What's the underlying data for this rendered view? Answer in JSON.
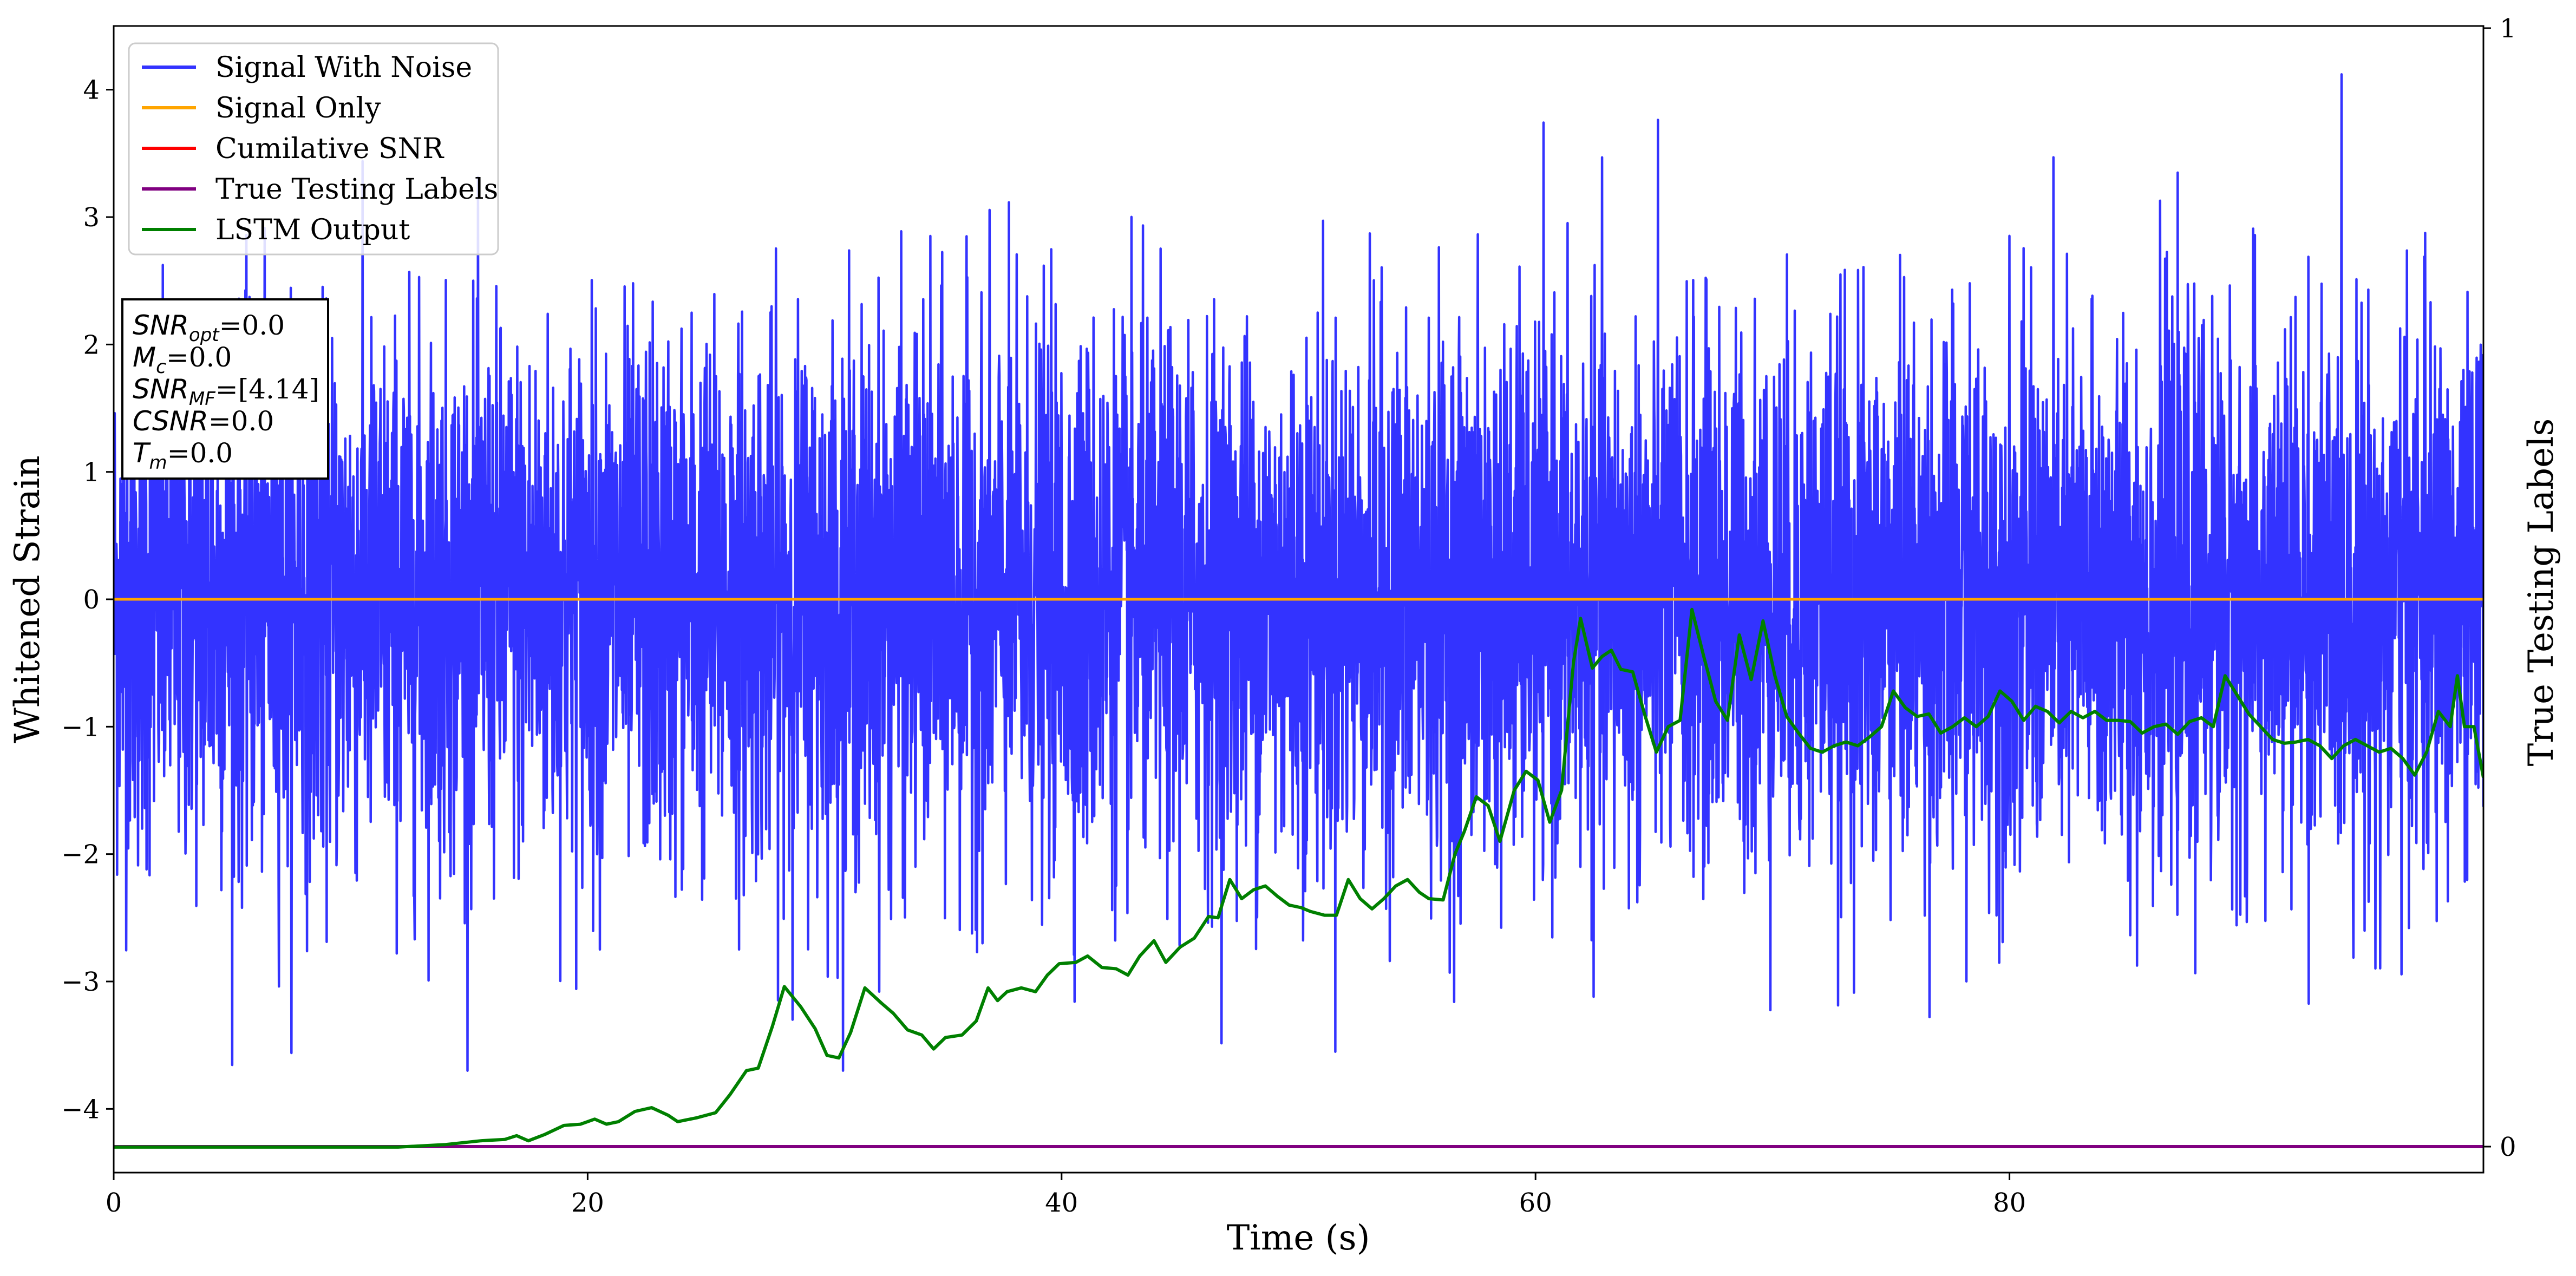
{
  "chart_data": {
    "type": "line",
    "xlabel": "Time (s)",
    "ylabel": "Whitened Strain",
    "ylabel_right": "True Testing Labels",
    "xlim": [
      0,
      100
    ],
    "ylim": [
      -4.5,
      4.5
    ],
    "ylim_right": [
      0,
      1
    ],
    "x_ticks": [
      "0",
      "20",
      "40",
      "60",
      "80"
    ],
    "y_ticks": [
      "−4",
      "−3",
      "−2",
      "−1",
      "0",
      "1",
      "2",
      "3",
      "4"
    ],
    "y_ticks_right": [
      "0",
      "1"
    ],
    "grid": false,
    "legend_position": "upper-left",
    "legend": [
      {
        "label": "Signal With Noise",
        "color": "#3333ff"
      },
      {
        "label": "Signal Only",
        "color": "#ffa500"
      },
      {
        "label": "Cumilative SNR",
        "color": "#ff0000"
      },
      {
        "label": "True Testing Labels",
        "color": "#800080"
      },
      {
        "label": "LSTM Output",
        "color": "#008000"
      }
    ],
    "annotation": {
      "snr_opt": {
        "sym": "SNR",
        "sub": "opt",
        "val": "=0.0"
      },
      "mc": {
        "sym": "M",
        "sub": "c",
        "val": "=0.0"
      },
      "snr_mf": {
        "sym": "SNR",
        "sub": "MF",
        "val": "=[4.14]"
      },
      "csnr": {
        "sym": "CSNR",
        "sub": "",
        "val": "=0.0"
      },
      "tm": {
        "sym": "T",
        "sub": "m",
        "val": "=0.0"
      }
    },
    "series": [
      {
        "name": "Signal With Noise",
        "color": "#3333ff",
        "description": "white noise, std ~1",
        "noise_std": 1.0
      },
      {
        "name": "Signal Only",
        "color": "#ffa500",
        "points": [
          [
            0,
            0
          ],
          [
            100,
            0
          ]
        ]
      },
      {
        "name": "True Testing Labels",
        "color": "#800080",
        "axis": "right",
        "points": [
          [
            0,
            0
          ],
          [
            100,
            0
          ]
        ]
      },
      {
        "name": "LSTM Output",
        "color": "#008000",
        "axis": "left",
        "points": [
          [
            0,
            -4.3
          ],
          [
            12,
            -4.3
          ],
          [
            14,
            -4.28
          ],
          [
            15.5,
            -4.25
          ],
          [
            16.5,
            -4.24
          ],
          [
            17,
            -4.21
          ],
          [
            17.5,
            -4.25
          ],
          [
            18.2,
            -4.2
          ],
          [
            19,
            -4.13
          ],
          [
            19.7,
            -4.12
          ],
          [
            20.3,
            -4.08
          ],
          [
            20.8,
            -4.12
          ],
          [
            21.3,
            -4.1
          ],
          [
            22,
            -4.02
          ],
          [
            22.7,
            -3.99
          ],
          [
            23.4,
            -4.05
          ],
          [
            23.8,
            -4.1
          ],
          [
            24.6,
            -4.07
          ],
          [
            25.4,
            -4.03
          ],
          [
            26,
            -3.89
          ],
          [
            26.7,
            -3.7
          ],
          [
            27.2,
            -3.68
          ],
          [
            27.8,
            -3.35
          ],
          [
            28.3,
            -3.04
          ],
          [
            29,
            -3.2
          ],
          [
            29.6,
            -3.37
          ],
          [
            30.1,
            -3.58
          ],
          [
            30.6,
            -3.6
          ],
          [
            31.1,
            -3.4
          ],
          [
            31.7,
            -3.05
          ],
          [
            32.4,
            -3.17
          ],
          [
            32.9,
            -3.25
          ],
          [
            33.5,
            -3.38
          ],
          [
            34.1,
            -3.42
          ],
          [
            34.6,
            -3.53
          ],
          [
            35.1,
            -3.44
          ],
          [
            35.8,
            -3.42
          ],
          [
            36.4,
            -3.31
          ],
          [
            36.9,
            -3.05
          ],
          [
            37.3,
            -3.15
          ],
          [
            37.7,
            -3.08
          ],
          [
            38.3,
            -3.05
          ],
          [
            38.9,
            -3.08
          ],
          [
            39.4,
            -2.95
          ],
          [
            39.9,
            -2.86
          ],
          [
            40.6,
            -2.85
          ],
          [
            41.1,
            -2.8
          ],
          [
            41.7,
            -2.89
          ],
          [
            42.3,
            -2.9
          ],
          [
            42.8,
            -2.95
          ],
          [
            43.3,
            -2.8
          ],
          [
            43.9,
            -2.68
          ],
          [
            44.4,
            -2.85
          ],
          [
            45,
            -2.73
          ],
          [
            45.6,
            -2.66
          ],
          [
            46.2,
            -2.49
          ],
          [
            46.6,
            -2.5
          ],
          [
            47.1,
            -2.2
          ],
          [
            47.6,
            -2.35
          ],
          [
            48.1,
            -2.28
          ],
          [
            48.6,
            -2.25
          ],
          [
            49.1,
            -2.33
          ],
          [
            49.6,
            -2.4
          ],
          [
            50.1,
            -2.42
          ],
          [
            50.5,
            -2.45
          ],
          [
            51.1,
            -2.48
          ],
          [
            51.6,
            -2.48
          ],
          [
            52.1,
            -2.2
          ],
          [
            52.6,
            -2.35
          ],
          [
            53.1,
            -2.43
          ],
          [
            53.6,
            -2.35
          ],
          [
            54.1,
            -2.25
          ],
          [
            54.6,
            -2.2
          ],
          [
            55.1,
            -2.3
          ],
          [
            55.5,
            -2.35
          ],
          [
            56.1,
            -2.36
          ],
          [
            56.6,
            -2.0
          ],
          [
            57,
            -1.82
          ],
          [
            57.5,
            -1.55
          ],
          [
            58,
            -1.62
          ],
          [
            58.5,
            -1.9
          ],
          [
            59.1,
            -1.5
          ],
          [
            59.6,
            -1.35
          ],
          [
            60.1,
            -1.42
          ],
          [
            60.6,
            -1.75
          ],
          [
            61.1,
            -1.5
          ],
          [
            61.6,
            -0.5
          ],
          [
            61.9,
            -0.15
          ],
          [
            62.4,
            -0.54
          ],
          [
            62.8,
            -0.45
          ],
          [
            63.2,
            -0.4
          ],
          [
            63.6,
            -0.55
          ],
          [
            64.1,
            -0.57
          ],
          [
            64.6,
            -0.9
          ],
          [
            65.1,
            -1.2
          ],
          [
            65.6,
            -1.0
          ],
          [
            66.1,
            -0.95
          ],
          [
            66.6,
            -0.08
          ],
          [
            67.1,
            -0.45
          ],
          [
            67.6,
            -0.8
          ],
          [
            68.1,
            -0.95
          ],
          [
            68.6,
            -0.28
          ],
          [
            69.1,
            -0.63
          ],
          [
            69.6,
            -0.17
          ],
          [
            70.1,
            -0.6
          ],
          [
            70.6,
            -0.92
          ],
          [
            71.1,
            -1.05
          ],
          [
            71.6,
            -1.17
          ],
          [
            72.1,
            -1.2
          ],
          [
            72.6,
            -1.15
          ],
          [
            73.1,
            -1.12
          ],
          [
            73.6,
            -1.15
          ],
          [
            74.1,
            -1.08
          ],
          [
            74.6,
            -1.0
          ],
          [
            75.1,
            -0.72
          ],
          [
            75.6,
            -0.85
          ],
          [
            76.1,
            -0.92
          ],
          [
            76.6,
            -0.9
          ],
          [
            77.1,
            -1.05
          ],
          [
            77.6,
            -1.0
          ],
          [
            78.1,
            -0.93
          ],
          [
            78.6,
            -1.0
          ],
          [
            79.1,
            -0.92
          ],
          [
            79.6,
            -0.72
          ],
          [
            80.1,
            -0.8
          ],
          [
            80.6,
            -0.95
          ],
          [
            81.1,
            -0.84
          ],
          [
            81.6,
            -0.88
          ],
          [
            82.1,
            -0.97
          ],
          [
            82.6,
            -0.88
          ],
          [
            83.1,
            -0.93
          ],
          [
            83.6,
            -0.88
          ],
          [
            84.1,
            -0.95
          ],
          [
            84.6,
            -0.95
          ],
          [
            85.1,
            -0.96
          ],
          [
            85.6,
            -1.05
          ],
          [
            86.1,
            -1.0
          ],
          [
            86.6,
            -0.98
          ],
          [
            87.1,
            -1.06
          ],
          [
            87.6,
            -0.96
          ],
          [
            88.1,
            -0.93
          ],
          [
            88.6,
            -1.0
          ],
          [
            89.1,
            -0.6
          ],
          [
            89.6,
            -0.75
          ],
          [
            90.1,
            -0.9
          ],
          [
            90.6,
            -1.0
          ],
          [
            91.1,
            -1.1
          ],
          [
            91.6,
            -1.13
          ],
          [
            92.1,
            -1.12
          ],
          [
            92.6,
            -1.1
          ],
          [
            93.1,
            -1.15
          ],
          [
            93.6,
            -1.25
          ],
          [
            94.1,
            -1.15
          ],
          [
            94.6,
            -1.1
          ],
          [
            95.1,
            -1.15
          ],
          [
            95.6,
            -1.2
          ],
          [
            96.1,
            -1.17
          ],
          [
            96.6,
            -1.25
          ],
          [
            97.1,
            -1.38
          ],
          [
            97.6,
            -1.2
          ],
          [
            98.1,
            -0.88
          ],
          [
            98.6,
            -1.0
          ],
          [
            98.9,
            -0.6
          ],
          [
            99.2,
            -1.0
          ],
          [
            99.6,
            -1.0
          ],
          [
            100,
            -1.4
          ]
        ]
      }
    ]
  }
}
